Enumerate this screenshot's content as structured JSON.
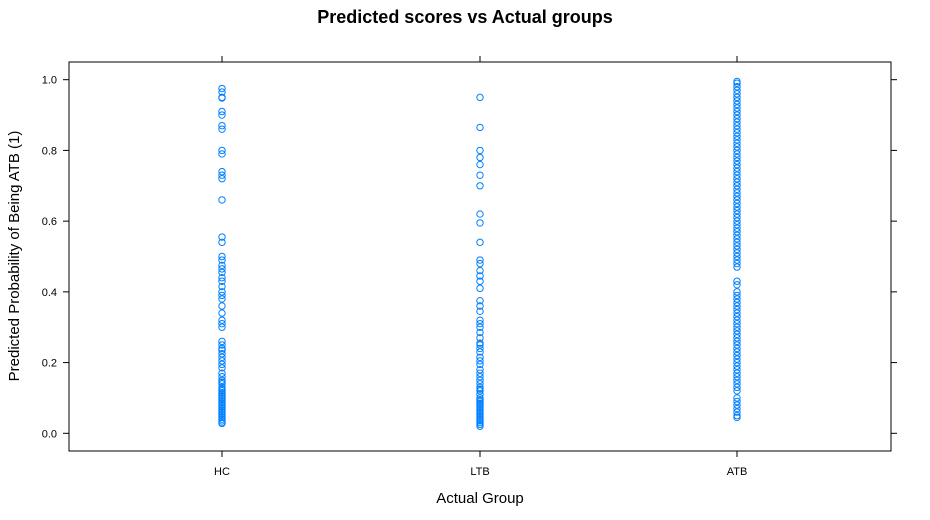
{
  "chart_data": {
    "type": "scatter",
    "title": "Predicted scores vs Actual groups",
    "xlabel": "Actual Group",
    "ylabel": "Predicted Probability of Being ATB (1)",
    "categories": [
      "HC",
      "LTB",
      "ATB"
    ],
    "ylim": [
      -0.05,
      1.05
    ],
    "yticks": [
      0.0,
      0.2,
      0.4,
      0.6,
      0.8,
      1.0
    ],
    "ytick_labels": [
      "0.0",
      "0.2",
      "0.4",
      "0.6",
      "0.8",
      "1.0"
    ],
    "grid": false,
    "point_color": "#0080ff",
    "series": [
      {
        "category": "HC",
        "values": [
          0.975,
          0.965,
          0.95,
          0.948,
          0.91,
          0.9,
          0.87,
          0.86,
          0.8,
          0.79,
          0.74,
          0.73,
          0.72,
          0.66,
          0.555,
          0.54,
          0.5,
          0.49,
          0.475,
          0.465,
          0.455,
          0.44,
          0.43,
          0.415,
          0.4,
          0.39,
          0.38,
          0.36,
          0.34,
          0.32,
          0.31,
          0.3,
          0.26,
          0.25,
          0.24,
          0.235,
          0.225,
          0.215,
          0.205,
          0.195,
          0.185,
          0.17,
          0.16,
          0.15,
          0.145,
          0.14,
          0.13,
          0.125,
          0.12,
          0.115,
          0.11,
          0.105,
          0.1,
          0.095,
          0.09,
          0.085,
          0.08,
          0.075,
          0.07,
          0.065,
          0.06,
          0.055,
          0.05,
          0.045,
          0.04,
          0.035,
          0.03,
          0.028
        ]
      },
      {
        "category": "LTB",
        "values": [
          0.95,
          0.865,
          0.8,
          0.78,
          0.76,
          0.73,
          0.7,
          0.62,
          0.595,
          0.54,
          0.49,
          0.48,
          0.46,
          0.445,
          0.43,
          0.41,
          0.375,
          0.36,
          0.345,
          0.32,
          0.31,
          0.3,
          0.285,
          0.27,
          0.255,
          0.25,
          0.24,
          0.23,
          0.215,
          0.205,
          0.195,
          0.18,
          0.17,
          0.16,
          0.15,
          0.14,
          0.13,
          0.125,
          0.12,
          0.11,
          0.1,
          0.095,
          0.09,
          0.085,
          0.08,
          0.075,
          0.07,
          0.065,
          0.06,
          0.055,
          0.05,
          0.045,
          0.04,
          0.035,
          0.03,
          0.025,
          0.02
        ]
      },
      {
        "category": "ATB",
        "values": [
          0.995,
          0.99,
          0.98,
          0.97,
          0.96,
          0.95,
          0.94,
          0.93,
          0.92,
          0.91,
          0.9,
          0.89,
          0.88,
          0.87,
          0.86,
          0.85,
          0.84,
          0.83,
          0.82,
          0.81,
          0.8,
          0.79,
          0.78,
          0.77,
          0.76,
          0.75,
          0.74,
          0.73,
          0.72,
          0.71,
          0.7,
          0.69,
          0.68,
          0.67,
          0.66,
          0.65,
          0.64,
          0.63,
          0.62,
          0.61,
          0.6,
          0.59,
          0.58,
          0.57,
          0.56,
          0.55,
          0.54,
          0.53,
          0.52,
          0.51,
          0.5,
          0.49,
          0.48,
          0.47,
          0.43,
          0.42,
          0.4,
          0.39,
          0.38,
          0.37,
          0.36,
          0.35,
          0.34,
          0.33,
          0.32,
          0.31,
          0.3,
          0.29,
          0.28,
          0.27,
          0.26,
          0.25,
          0.24,
          0.23,
          0.22,
          0.21,
          0.2,
          0.19,
          0.18,
          0.17,
          0.16,
          0.15,
          0.14,
          0.13,
          0.12,
          0.1,
          0.09,
          0.08,
          0.07,
          0.06,
          0.05,
          0.045
        ]
      }
    ]
  }
}
